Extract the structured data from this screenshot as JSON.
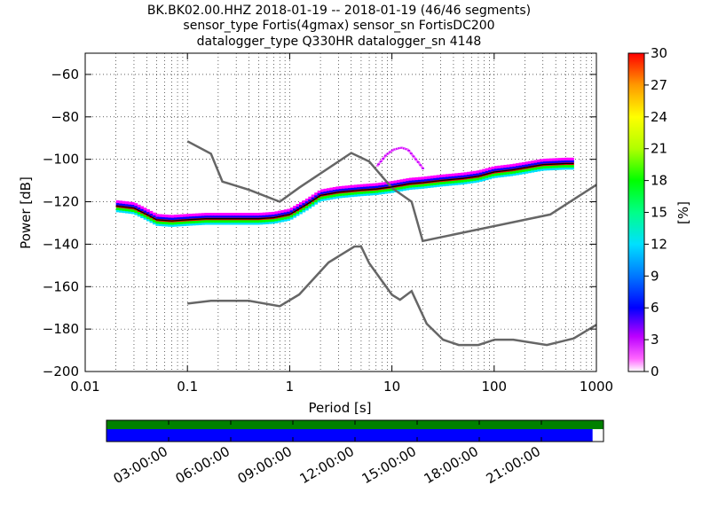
{
  "title_lines": [
    "BK.BK02.00.HHZ   2018-01-19 -- 2018-01-19  (46/46 segments)",
    "sensor_type Fortis(4gmax) sensor_sn FortisDC200",
    "datalogger_type Q330HR datalogger_sn 4148"
  ],
  "chart_data": [
    {
      "type": "heatmap",
      "xlabel": "Period [s]",
      "ylabel": "Power [dB]",
      "x_scale": "log",
      "xlim": [
        0.01,
        1000
      ],
      "ylim": [
        -200,
        -50
      ],
      "x_ticks": [
        {
          "value": 0.01,
          "label": "0.01"
        },
        {
          "value": 0.1,
          "label": "0.1"
        },
        {
          "value": 1,
          "label": "1"
        },
        {
          "value": 10,
          "label": "10"
        },
        {
          "value": 100,
          "label": "100"
        },
        {
          "value": 1000,
          "label": "1000"
        }
      ],
      "y_ticks": [
        {
          "value": -60,
          "label": "−60"
        },
        {
          "value": -80,
          "label": "−80"
        },
        {
          "value": -100,
          "label": "−100"
        },
        {
          "value": -120,
          "label": "−120"
        },
        {
          "value": -140,
          "label": "−140"
        },
        {
          "value": -160,
          "label": "−160"
        },
        {
          "value": -180,
          "label": "−180"
        },
        {
          "value": -200,
          "label": "−200"
        }
      ],
      "grid": true,
      "colorbar": {
        "label": "[%]",
        "range": [
          0,
          30
        ],
        "ticks": [
          "0",
          "3",
          "6",
          "9",
          "12",
          "15",
          "18",
          "21",
          "24",
          "27",
          "30"
        ]
      },
      "noise_models": [
        {
          "x": [
            0.1,
            0.17,
            0.22,
            0.4,
            0.8,
            1.25,
            4.0,
            6.0,
            10.0,
            15.6,
            20.0,
            354.0,
            1000.0
          ],
          "y": [
            -91.5,
            -97.4,
            -110.5,
            -114.4,
            -120.0,
            -113.2,
            -97.0,
            -101.0,
            -113.5,
            -120.0,
            -138.5,
            -126.0,
            -112.0
          ]
        },
        {
          "x": [
            0.1,
            0.17,
            0.4,
            0.8,
            1.24,
            2.4,
            4.3,
            5.0,
            6.0,
            10.0,
            12.0,
            15.6,
            21.9,
            31.6,
            45.0,
            70.0,
            101.0,
            154.0,
            328.0,
            600.0,
            1000.0
          ],
          "y": [
            -168.0,
            -166.7,
            -166.7,
            -169.2,
            -163.7,
            -148.6,
            -141.1,
            -141.1,
            -149.0,
            -163.8,
            -166.2,
            -162.1,
            -177.5,
            -185.0,
            -187.5,
            -187.5,
            -185.0,
            -185.0,
            -187.5,
            -184.4,
            -178.0
          ]
        }
      ],
      "mode_curve": {
        "x": [
          0.02,
          0.03,
          0.04,
          0.05,
          0.07,
          0.1,
          0.15,
          0.2,
          0.3,
          0.5,
          0.7,
          1.0,
          1.5,
          2.0,
          3.0,
          5.0,
          7.0,
          10.0,
          15.0,
          20.0,
          30.0,
          50.0,
          70.0,
          100.0,
          150.0,
          200.0,
          300.0,
          500.0,
          600.0
        ],
        "y": [
          -122,
          -123,
          -126,
          -128.5,
          -129,
          -128.5,
          -128,
          -128,
          -128,
          -128,
          -127.5,
          -126,
          -121,
          -117,
          -115.5,
          -114.5,
          -114,
          -113,
          -111.5,
          -111,
          -110,
          -109,
          -108,
          -106,
          -105,
          -104,
          -102.5,
          -102,
          -102
        ]
      },
      "outlier_band": {
        "x": [
          7.0,
          8.5,
          10.0,
          12.0,
          14.0,
          16.0,
          18.0,
          20.0
        ],
        "y": [
          -103,
          -98,
          -95.5,
          -94.5,
          -95.5,
          -99,
          -102,
          -105
        ]
      }
    },
    {
      "type": "timeline",
      "x_tick_labels": [
        "03:00:00",
        "06:00:00",
        "09:00:00",
        "12:00:00",
        "15:00:00",
        "18:00:00",
        "21:00:00"
      ],
      "hours_ticks": [
        3,
        6,
        9,
        12,
        15,
        18,
        21
      ],
      "range_hours": [
        0,
        24
      ],
      "top_bar_coverage": 1.0,
      "bottom_bar_coverage": 0.978,
      "top_bar_color": "#008000",
      "bottom_bar_color": "#0000ff"
    }
  ],
  "colors": {
    "noise_model": "#666666",
    "mode_curve": "#000000",
    "axes": "#000000"
  }
}
